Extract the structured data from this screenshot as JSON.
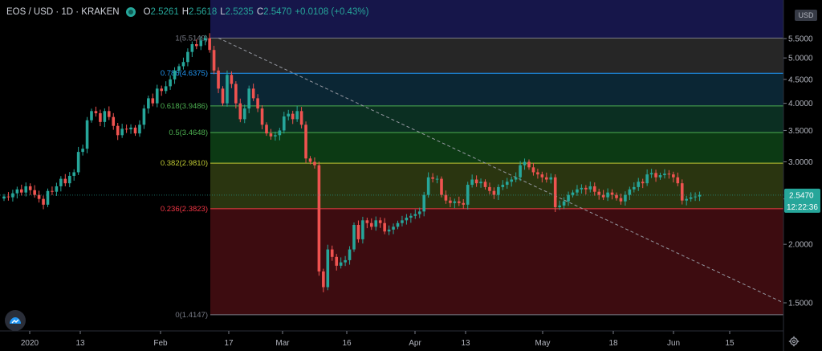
{
  "header": {
    "symbol": "EOS / USD · 1D · KRAKEN",
    "open_label": "O",
    "open": "2.5261",
    "high_label": "H",
    "high": "2.5618",
    "low_label": "L",
    "low": "2.5235",
    "close_label": "C",
    "close": "2.5470",
    "change": "+0.0108 (+0.43%)"
  },
  "currency_badge": "USD",
  "price_badge": {
    "price": "2.5470",
    "countdown": "12:22:36"
  },
  "colors": {
    "up": "#26a69a",
    "down": "#ef5350",
    "bg": "#000000",
    "fib_1": "#787b86",
    "fib_0786": "#2196f3",
    "fib_0618": "#4caf50",
    "fib_05": "#4caf50",
    "fib_0382": "#c0ca33",
    "fib_0236": "#f23645",
    "fib_0": "#787b86"
  },
  "chart_data": {
    "type": "candlestick",
    "y_axis": {
      "ticks": [
        "5.5000",
        "5.0000",
        "4.5000",
        "4.0000",
        "3.5000",
        "3.0000",
        "2.5000",
        "2.0000",
        "1.5000"
      ],
      "scale": "log"
    },
    "x_axis": {
      "ticks": [
        "2020",
        "13",
        "Feb",
        "17",
        "Mar",
        "16",
        "Apr",
        "13",
        "May",
        "18",
        "Jun",
        "15"
      ]
    },
    "fib_retracement": [
      {
        "label": "1(5.5149)",
        "level": "1",
        "price": 5.5149
      },
      {
        "label": "0.786(4.6375)",
        "level": "0.786",
        "price": 4.6375
      },
      {
        "label": "0.618(3.9486)",
        "level": "0.618",
        "price": 3.9486
      },
      {
        "label": "0.5(3.4648)",
        "level": "0.5",
        "price": 3.4648
      },
      {
        "label": "0.382(2.9810)",
        "level": "0.382",
        "price": 2.981
      },
      {
        "label": "0.236(2.3823)",
        "level": "0.236",
        "price": 2.3823
      },
      {
        "label": "0(1.4147)",
        "level": "0",
        "price": 1.4147
      }
    ],
    "trendline": {
      "from_price": 5.5149,
      "to_price": 1.5
    },
    "closes": [
      2.53,
      2.52,
      2.57,
      2.62,
      2.58,
      2.66,
      2.61,
      2.55,
      2.5,
      2.43,
      2.6,
      2.59,
      2.66,
      2.76,
      2.7,
      2.8,
      2.85,
      3.15,
      3.2,
      3.68,
      3.85,
      3.81,
      3.65,
      3.85,
      3.74,
      3.58,
      3.42,
      3.53,
      3.52,
      3.55,
      3.45,
      3.6,
      3.9,
      4.1,
      4.0,
      4.3,
      4.25,
      4.35,
      4.5,
      4.7,
      4.8,
      4.9,
      5.15,
      5.35,
      5.3,
      5.45,
      5.51,
      5.2,
      4.7,
      4.3,
      4.0,
      4.6,
      4.4,
      4.0,
      3.7,
      3.9,
      4.3,
      4.1,
      3.9,
      3.6,
      3.45,
      3.4,
      3.42,
      3.5,
      3.75,
      3.8,
      3.7,
      3.85,
      3.6,
      3.05,
      3.0,
      2.95,
      1.75,
      1.62,
      1.95,
      1.88,
      1.8,
      1.83,
      1.85,
      1.95,
      2.2,
      2.05,
      2.25,
      2.22,
      2.18,
      2.25,
      2.22,
      2.13,
      2.15,
      2.18,
      2.22,
      2.25,
      2.28,
      2.3,
      2.32,
      2.35,
      2.55,
      2.78,
      2.76,
      2.76,
      2.55,
      2.48,
      2.45,
      2.47,
      2.45,
      2.43,
      2.68,
      2.75,
      2.7,
      2.72,
      2.65,
      2.6,
      2.55,
      2.65,
      2.68,
      2.72,
      2.75,
      2.78,
      2.95,
      3.0,
      2.92,
      2.85,
      2.82,
      2.78,
      2.75,
      2.78,
      2.4,
      2.42,
      2.47,
      2.55,
      2.58,
      2.62,
      2.64,
      2.62,
      2.66,
      2.59,
      2.55,
      2.52,
      2.58,
      2.55,
      2.51,
      2.47,
      2.55,
      2.62,
      2.65,
      2.72,
      2.7,
      2.82,
      2.84,
      2.78,
      2.81,
      2.83,
      2.82,
      2.78,
      2.7,
      2.48,
      2.5,
      2.52,
      2.53,
      2.55
    ]
  }
}
